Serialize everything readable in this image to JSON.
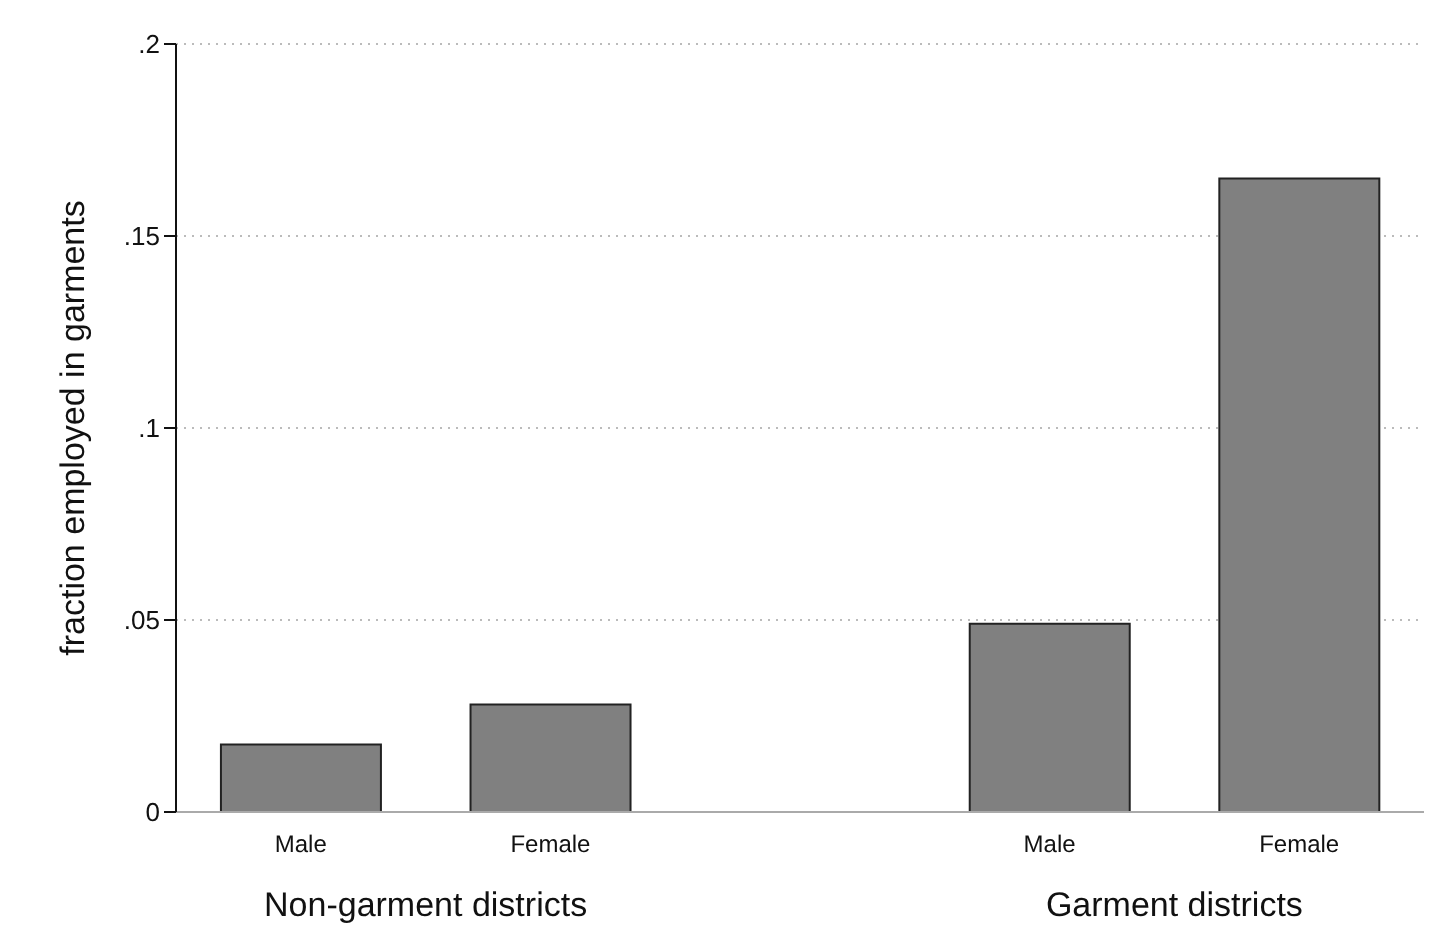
{
  "chart_data": {
    "type": "bar",
    "ylabel": "fraction employed in garments",
    "categories": [
      "Male",
      "Female",
      null,
      "Male",
      "Female"
    ],
    "values": [
      0.0176,
      0.028,
      null,
      0.049,
      0.165
    ],
    "color": "#808080",
    "ylim": [
      0,
      0.2
    ],
    "yticks": [
      {
        "value": 0,
        "label": "0"
      },
      {
        "value": 0.05,
        "label": ".05"
      },
      {
        "value": 0.1,
        "label": ".1"
      },
      {
        "value": 0.15,
        "label": ".15"
      },
      {
        "value": 0.2,
        "label": ".2"
      }
    ],
    "grid": "y",
    "annotations": [
      "Non-garment districts",
      "Garment districts"
    ]
  }
}
